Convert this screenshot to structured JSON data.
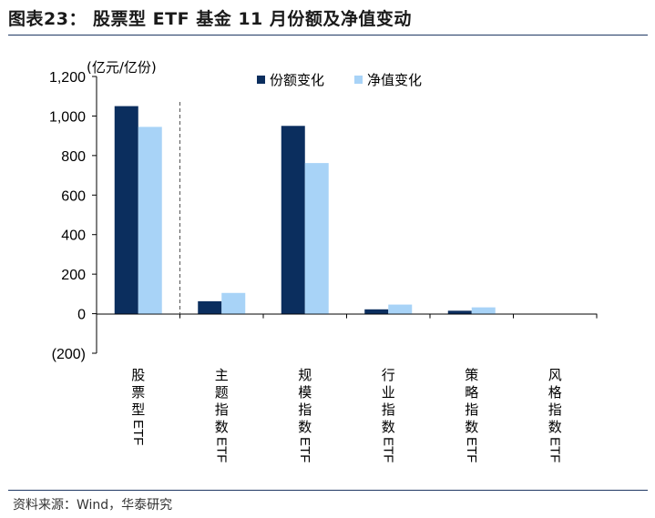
{
  "header": {
    "title": "图表23：  股票型 ETF 基金 11 月份额及净值变动"
  },
  "footer": {
    "source": "资料来源：Wind，华泰研究"
  },
  "chart_data": {
    "type": "bar",
    "unit_label": "(亿元/亿份)",
    "categories": [
      {
        "cjk": "股票型",
        "latin": "ETF"
      },
      {
        "cjk": "主题指数",
        "latin": "ETF"
      },
      {
        "cjk": "规模指数",
        "latin": "ETF"
      },
      {
        "cjk": "行业指数",
        "latin": "ETF"
      },
      {
        "cjk": "策略指数",
        "latin": "ETF"
      },
      {
        "cjk": "风格指数",
        "latin": "ETF"
      }
    ],
    "series": [
      {
        "name": "份额变化",
        "color": "#0b2e5e",
        "values": [
          1050,
          63,
          950,
          22,
          15,
          0
        ]
      },
      {
        "name": "净值变化",
        "color": "#a8d3f7",
        "values": [
          945,
          105,
          762,
          46,
          32,
          0
        ]
      }
    ],
    "ylim": [
      -200,
      1200
    ],
    "yticks": [
      1200,
      1000,
      800,
      600,
      400,
      200,
      0,
      -200
    ],
    "ytick_labels": [
      "1,200",
      "1,000",
      "800",
      "600",
      "400",
      "200",
      "0",
      "(200)"
    ],
    "legend_position": "top-right",
    "grid": false,
    "separator_after_category": 0
  }
}
